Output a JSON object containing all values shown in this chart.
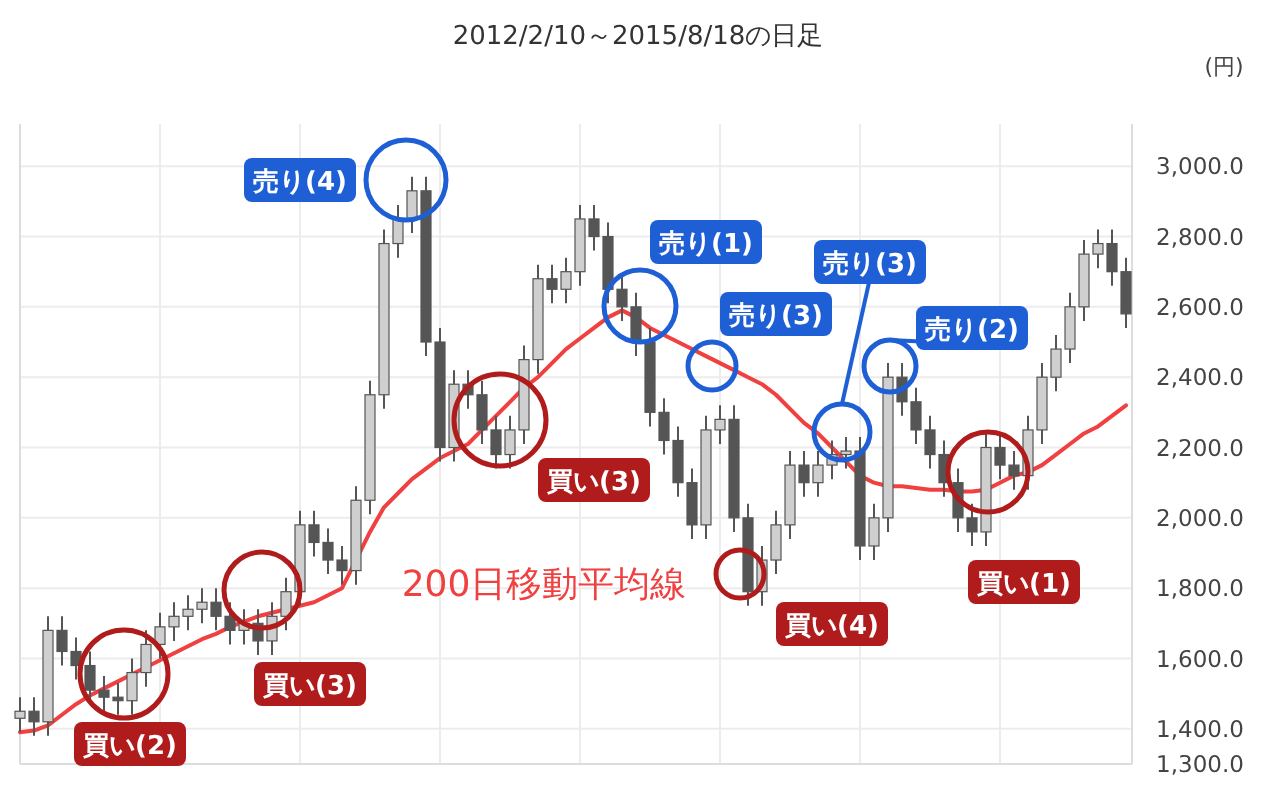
{
  "chart_data": {
    "type": "candlestick",
    "title": "2012/2/10～2015/8/18の日足",
    "ylabel": "(円)",
    "categories": [
      null,
      null,
      null,
      null,
      null,
      null,
      null,
      null,
      null,
      null,
      null,
      null,
      null,
      null,
      null,
      null,
      null,
      null,
      null,
      null,
      null,
      null,
      null,
      null,
      null,
      null,
      null,
      null,
      null,
      null,
      null,
      null,
      null,
      null,
      null,
      null,
      null,
      null,
      null,
      null,
      null,
      null,
      null,
      null,
      null,
      null,
      null,
      null,
      null,
      null,
      null,
      null,
      null,
      null,
      null,
      null,
      null,
      null,
      null,
      null,
      null,
      null,
      null,
      null,
      null,
      null,
      null,
      null,
      null,
      null,
      null,
      null,
      null,
      null,
      null,
      null,
      null,
      null,
      null,
      null
    ],
    "color": "#555555",
    "ohlc": [
      [
        1430,
        1490,
        1390,
        1450
      ],
      [
        1450,
        1490,
        1380,
        1420
      ],
      [
        1420,
        1720,
        1380,
        1680
      ],
      [
        1680,
        1720,
        1580,
        1620
      ],
      [
        1620,
        1660,
        1540,
        1580
      ],
      [
        1580,
        1620,
        1470,
        1510
      ],
      [
        1510,
        1550,
        1450,
        1490
      ],
      [
        1490,
        1530,
        1440,
        1480
      ],
      [
        1480,
        1600,
        1440,
        1560
      ],
      [
        1560,
        1680,
        1520,
        1640
      ],
      [
        1640,
        1730,
        1600,
        1690
      ],
      [
        1690,
        1760,
        1650,
        1720
      ],
      [
        1720,
        1780,
        1680,
        1740
      ],
      [
        1740,
        1800,
        1700,
        1760
      ],
      [
        1760,
        1800,
        1680,
        1720
      ],
      [
        1720,
        1760,
        1640,
        1680
      ],
      [
        1680,
        1740,
        1640,
        1700
      ],
      [
        1700,
        1740,
        1610,
        1650
      ],
      [
        1650,
        1760,
        1610,
        1720
      ],
      [
        1720,
        1830,
        1680,
        1790
      ],
      [
        1790,
        2020,
        1750,
        1980
      ],
      [
        1980,
        2020,
        1890,
        1930
      ],
      [
        1930,
        1970,
        1840,
        1880
      ],
      [
        1880,
        1920,
        1810,
        1850
      ],
      [
        1850,
        2090,
        1810,
        2050
      ],
      [
        2050,
        2390,
        2010,
        2350
      ],
      [
        2350,
        2820,
        2310,
        2780
      ],
      [
        2780,
        2890,
        2740,
        2850
      ],
      [
        2850,
        2970,
        2810,
        2930
      ],
      [
        2930,
        2970,
        2460,
        2500
      ],
      [
        2500,
        2540,
        2160,
        2200
      ],
      [
        2200,
        2420,
        2160,
        2380
      ],
      [
        2380,
        2420,
        2310,
        2350
      ],
      [
        2350,
        2390,
        2210,
        2250
      ],
      [
        2250,
        2290,
        2140,
        2180
      ],
      [
        2180,
        2290,
        2140,
        2250
      ],
      [
        2250,
        2490,
        2210,
        2450
      ],
      [
        2450,
        2720,
        2410,
        2680
      ],
      [
        2680,
        2720,
        2610,
        2650
      ],
      [
        2650,
        2740,
        2610,
        2700
      ],
      [
        2700,
        2890,
        2660,
        2850
      ],
      [
        2850,
        2890,
        2760,
        2800
      ],
      [
        2800,
        2840,
        2610,
        2650
      ],
      [
        2650,
        2690,
        2560,
        2600
      ],
      [
        2600,
        2640,
        2460,
        2500
      ],
      [
        2500,
        2540,
        2260,
        2300
      ],
      [
        2300,
        2340,
        2180,
        2220
      ],
      [
        2220,
        2260,
        2060,
        2100
      ],
      [
        2100,
        2140,
        1940,
        1980
      ],
      [
        1980,
        2290,
        1940,
        2250
      ],
      [
        2250,
        2320,
        2210,
        2280
      ],
      [
        2280,
        2320,
        1960,
        2000
      ],
      [
        2000,
        2040,
        1750,
        1790
      ],
      [
        1790,
        1920,
        1750,
        1880
      ],
      [
        1880,
        2020,
        1840,
        1980
      ],
      [
        1980,
        2190,
        1940,
        2150
      ],
      [
        2150,
        2190,
        2060,
        2100
      ],
      [
        2100,
        2190,
        2060,
        2150
      ],
      [
        2150,
        2220,
        2110,
        2180
      ],
      [
        2180,
        2230,
        2140,
        2190
      ],
      [
        2190,
        2230,
        1880,
        1920
      ],
      [
        1920,
        2040,
        1880,
        2000
      ],
      [
        2000,
        2440,
        1960,
        2400
      ],
      [
        2400,
        2440,
        2290,
        2330
      ],
      [
        2330,
        2370,
        2210,
        2250
      ],
      [
        2250,
        2290,
        2140,
        2180
      ],
      [
        2180,
        2220,
        2060,
        2100
      ],
      [
        2100,
        2140,
        1960,
        2000
      ],
      [
        2000,
        2040,
        1920,
        1960
      ],
      [
        1960,
        2240,
        1920,
        2200
      ],
      [
        2200,
        2240,
        2110,
        2150
      ],
      [
        2150,
        2190,
        2080,
        2120
      ],
      [
        2120,
        2290,
        2080,
        2250
      ],
      [
        2250,
        2440,
        2210,
        2400
      ],
      [
        2400,
        2520,
        2360,
        2480
      ],
      [
        2480,
        2640,
        2440,
        2600
      ],
      [
        2600,
        2790,
        2560,
        2750
      ],
      [
        2750,
        2820,
        2710,
        2780
      ],
      [
        2780,
        2820,
        2660,
        2700
      ],
      [
        2700,
        2740,
        2540,
        2580
      ]
    ],
    "series": [
      {
        "name": "200日移動平均線",
        "type": "line",
        "color": "#f04040",
        "values": [
          1390,
          1395,
          1410,
          1440,
          1470,
          1495,
          1515,
          1535,
          1555,
          1575,
          1595,
          1615,
          1635,
          1655,
          1670,
          1690,
          1705,
          1720,
          1730,
          1740,
          1750,
          1760,
          1780,
          1800,
          1880,
          1960,
          2030,
          2070,
          2110,
          2140,
          2170,
          2190,
          2210,
          2250,
          2290,
          2330,
          2370,
          2400,
          2440,
          2480,
          2510,
          2540,
          2570,
          2590,
          2570,
          2540,
          2520,
          2500,
          2480,
          2460,
          2440,
          2420,
          2400,
          2380,
          2350,
          2310,
          2270,
          2240,
          2200,
          2160,
          2120,
          2100,
          2090,
          2090,
          2085,
          2080,
          2080,
          2075,
          2075,
          2080,
          2100,
          2120,
          2130,
          2150,
          2180,
          2210,
          2240,
          2260,
          2290,
          2320
        ]
      }
    ],
    "ylim": [
      1300,
      3120
    ],
    "yticks": [
      {
        "value": 1300,
        "label": "1,300.0"
      },
      {
        "value": 1400,
        "label": "1,400.0"
      },
      {
        "value": 1600,
        "label": "1,600.0"
      },
      {
        "value": 1800,
        "label": "1,800.0"
      },
      {
        "value": 2000,
        "label": "2,000.0"
      },
      {
        "value": 2200,
        "label": "2,200.0"
      },
      {
        "value": 2400,
        "label": "2,400.0"
      },
      {
        "value": 2600,
        "label": "2,600.0"
      },
      {
        "value": 2800,
        "label": "2,800.0"
      },
      {
        "value": 3000,
        "label": "3,000.0"
      }
    ],
    "grid": true,
    "annotations": [
      "売り(4)",
      "売り(1)",
      "売り(3)",
      "売り(3)",
      "売り(2)",
      "買い(3)",
      "買い(2)",
      "買い(3)",
      "買い(4)",
      "買い(1)"
    ]
  }
}
